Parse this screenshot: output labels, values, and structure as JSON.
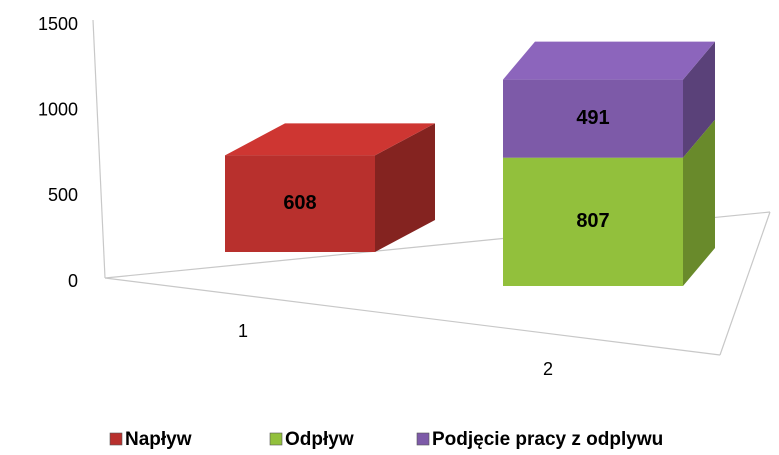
{
  "chart_data": {
    "type": "bar3d_stacked",
    "categories": [
      "1",
      "2"
    ],
    "series": [
      {
        "name": "Napływ",
        "color": "#b8302d",
        "values": [
          608,
          null
        ]
      },
      {
        "name": "Odpływ",
        "color": "#92c03c",
        "values": [
          null,
          807
        ]
      },
      {
        "name": "Podjęcie pracy z odplywu",
        "color": "#7d5aa8",
        "values": [
          null,
          491
        ]
      }
    ],
    "ylim": [
      0,
      1500
    ],
    "yticks": [
      0,
      500,
      1000,
      1500
    ],
    "legend": "bottom"
  }
}
